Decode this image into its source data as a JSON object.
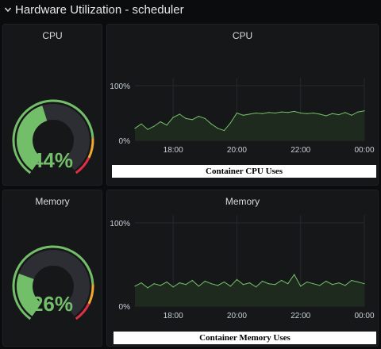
{
  "row": {
    "title": "Hardware Utilization - scheduler"
  },
  "colors": {
    "green": "#73bf69",
    "track": "#2c2e33",
    "orange": "#f2a72d",
    "red": "#e02f44",
    "fill": "#1f2a1e"
  },
  "icons": {
    "row_toggle": "chevron-down-icon"
  },
  "cpu_gauge": {
    "title": "CPU",
    "value": 44,
    "value_label": "44%"
  },
  "cpu_chart": {
    "title": "CPU",
    "caption": "Container CPU Uses",
    "y_ticks": [
      "100%",
      "0%"
    ],
    "x_ticks": [
      "18:00",
      "20:00",
      "22:00",
      "00:00"
    ]
  },
  "mem_gauge": {
    "title": "Memory",
    "value": 26,
    "value_label": "26%"
  },
  "mem_chart": {
    "title": "Memory",
    "caption": "Container Memory Uses",
    "y_ticks": [
      "100%",
      "0%"
    ],
    "x_ticks": [
      "18:00",
      "20:00",
      "22:00",
      "00:00"
    ]
  },
  "chart_data": [
    {
      "type": "area",
      "title": "CPU",
      "ylim": [
        0,
        100
      ],
      "xlim_hours": [
        16.8,
        24.0
      ],
      "x_hours": [
        16.8,
        17.0,
        17.2,
        17.4,
        17.6,
        17.8,
        18.0,
        18.2,
        18.4,
        18.6,
        18.8,
        19.0,
        19.2,
        19.4,
        19.6,
        19.8,
        20.0,
        20.2,
        20.4,
        20.6,
        20.8,
        21.0,
        21.2,
        21.4,
        21.6,
        21.8,
        22.0,
        22.2,
        22.4,
        22.6,
        22.8,
        23.0,
        23.2,
        23.4,
        23.6,
        23.8,
        24.0
      ],
      "y": [
        22,
        30,
        20,
        26,
        34,
        28,
        42,
        48,
        40,
        38,
        44,
        40,
        30,
        22,
        18,
        32,
        50,
        46,
        48,
        50,
        49,
        51,
        50,
        52,
        51,
        53,
        50,
        49,
        50,
        48,
        45,
        49,
        47,
        51,
        46,
        52,
        54
      ]
    },
    {
      "type": "area",
      "title": "Memory",
      "ylim": [
        0,
        100
      ],
      "xlim_hours": [
        16.8,
        24.0
      ],
      "x_hours": [
        16.8,
        17.0,
        17.2,
        17.4,
        17.6,
        17.8,
        18.0,
        18.2,
        18.4,
        18.6,
        18.8,
        19.0,
        19.2,
        19.4,
        19.6,
        19.8,
        20.0,
        20.2,
        20.4,
        20.6,
        20.8,
        21.0,
        21.2,
        21.4,
        21.6,
        21.8,
        22.0,
        22.2,
        22.4,
        22.6,
        22.8,
        23.0,
        23.2,
        23.4,
        23.6,
        23.8,
        24.0
      ],
      "y": [
        24,
        28,
        22,
        27,
        25,
        29,
        23,
        28,
        26,
        31,
        24,
        30,
        27,
        25,
        29,
        24,
        32,
        26,
        28,
        23,
        30,
        27,
        26,
        31,
        27,
        38,
        24,
        29,
        27,
        25,
        30,
        26,
        28,
        25,
        31,
        29,
        27
      ]
    }
  ]
}
